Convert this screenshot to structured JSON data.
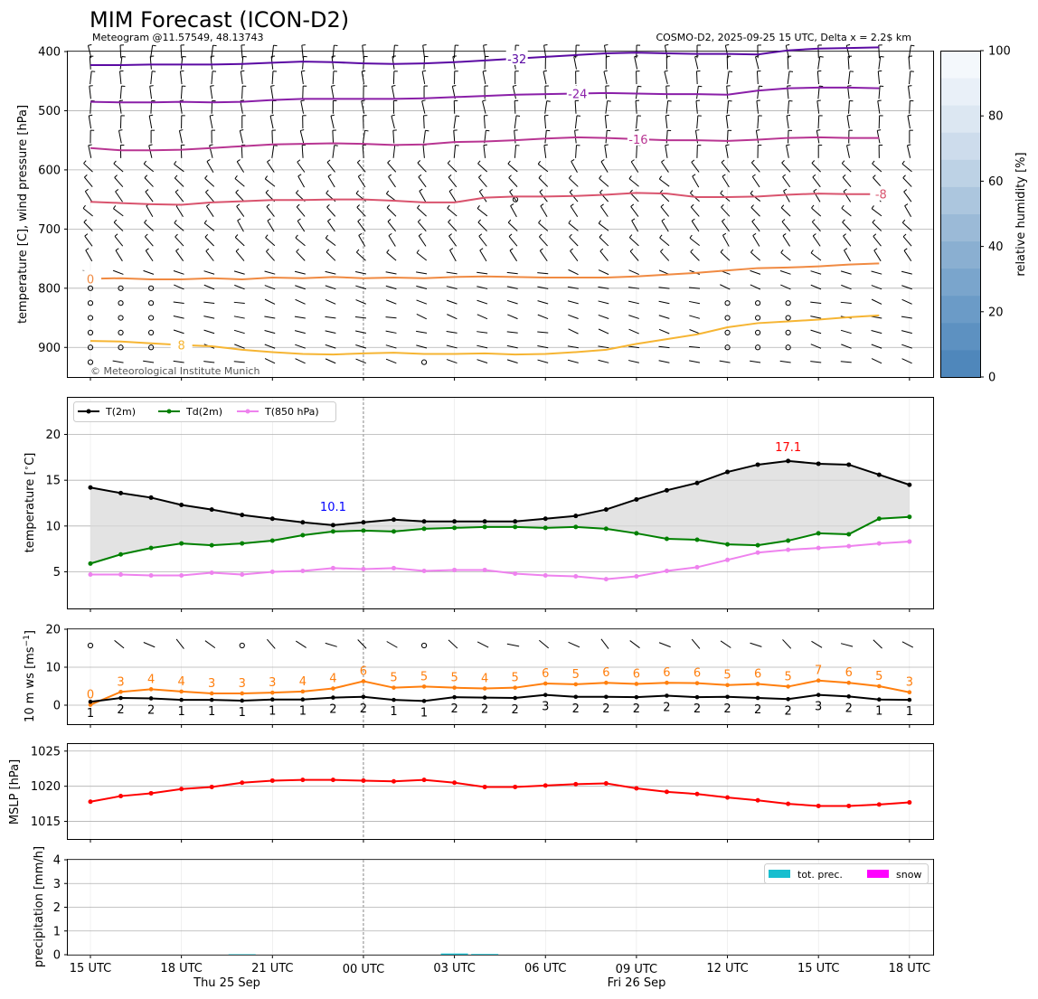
{
  "header": {
    "title": "MIM Forecast (ICON-D2)",
    "subtitle_left": "Meteogram @11.57549, 48.13743",
    "subtitle_right": "COSMO-D2, 2025-09-25 15 UTC, Delta x = 2.2$ km",
    "copyright": "© Meteorological Institute Munich"
  },
  "colors": {
    "t2m": "#000000",
    "td2m": "#008000",
    "t850": "#ee82ee",
    "wind_speed": "#ff7f0e",
    "mslp": "#ff0000",
    "tot_prec": "#17becf",
    "snow": "#ff00ff",
    "grid": "#b0b0b0",
    "shade": "#d9d9d9"
  },
  "chart_data": [
    {
      "id": "profile",
      "type": "contour",
      "ylabel": "temperature [C], wind pressure [hPa]",
      "ylim": [
        950,
        400
      ],
      "yticks": [
        400,
        500,
        600,
        700,
        800,
        900
      ],
      "contour_labels": [
        "-32",
        "-24",
        "-16",
        "-8",
        "0",
        "8"
      ],
      "contours": [
        {
          "level": -32,
          "color": "#5b0aa3",
          "y": [
            423,
            423,
            422,
            422,
            422,
            421,
            419,
            417,
            418,
            420,
            421,
            420,
            418,
            415,
            412,
            409,
            406,
            403,
            402,
            403,
            404,
            404,
            405,
            398,
            395,
            394,
            393
          ]
        },
        {
          "level": -24,
          "color": "#8a1fa8",
          "y": [
            485,
            486,
            486,
            485,
            486,
            485,
            482,
            480,
            480,
            480,
            480,
            479,
            477,
            475,
            473,
            472,
            471,
            470,
            471,
            472,
            472,
            473,
            466,
            462,
            461,
            461,
            462
          ]
        },
        {
          "level": -16,
          "color": "#b83592",
          "y": [
            563,
            567,
            567,
            566,
            563,
            560,
            557,
            556,
            555,
            556,
            558,
            557,
            553,
            552,
            550,
            547,
            545,
            546,
            548,
            550,
            550,
            551,
            549,
            546,
            545,
            546,
            546
          ]
        },
        {
          "level": -8,
          "color": "#d9546e",
          "y": [
            654,
            656,
            658,
            659,
            655,
            653,
            651,
            651,
            650,
            650,
            652,
            655,
            655,
            647,
            645,
            645,
            644,
            642,
            639,
            640,
            646,
            646,
            645,
            642,
            640,
            641,
            641
          ]
        },
        {
          "level": 0,
          "color": "#f08a42",
          "y": [
            784,
            783,
            785,
            785,
            783,
            785,
            782,
            783,
            781,
            783,
            782,
            783,
            781,
            780,
            781,
            782,
            782,
            782,
            780,
            777,
            774,
            770,
            766,
            765,
            763,
            760,
            758
          ]
        },
        {
          "level": 8,
          "color": "#f6b533",
          "y": [
            889,
            890,
            893,
            896,
            898,
            904,
            908,
            911,
            912,
            910,
            909,
            911,
            911,
            910,
            912,
            911,
            908,
            904,
            894,
            886,
            878,
            866,
            859,
            856,
            853,
            849,
            846
          ]
        }
      ],
      "humidity_colorbar": {
        "label": "relative humidity [%]",
        "range": [
          0,
          100
        ],
        "ticks": [
          0,
          20,
          40,
          60,
          80,
          100
        ]
      }
    },
    {
      "id": "temperature",
      "type": "line",
      "ylabel": "temperature [$^\\circ$C]",
      "ylim": [
        1,
        24
      ],
      "yticks": [
        5,
        10,
        15,
        20
      ],
      "legend": [
        "T(2m)",
        "Td(2m)",
        "T(850 hPa)"
      ],
      "min_label": "10.1",
      "max_label": "17.1",
      "series": [
        {
          "name": "T(2m)",
          "values": [
            14.2,
            13.6,
            13.1,
            12.3,
            11.8,
            11.2,
            10.8,
            10.4,
            10.1,
            10.4,
            10.7,
            10.5,
            10.5,
            10.5,
            10.5,
            10.8,
            11.1,
            11.8,
            12.9,
            13.9,
            14.7,
            15.9,
            16.7,
            17.1,
            16.8,
            16.7,
            15.6,
            14.5
          ]
        },
        {
          "name": "Td(2m)",
          "values": [
            5.9,
            6.9,
            7.6,
            8.1,
            7.9,
            8.1,
            8.4,
            9.0,
            9.4,
            9.5,
            9.4,
            9.7,
            9.8,
            9.9,
            9.9,
            9.8,
            9.9,
            9.7,
            9.2,
            8.6,
            8.5,
            8.0,
            7.9,
            8.4,
            9.2,
            9.1,
            10.8,
            11.0
          ]
        },
        {
          "name": "T(850 hPa)",
          "values": [
            4.7,
            4.7,
            4.6,
            4.6,
            4.9,
            4.7,
            5.0,
            5.1,
            5.4,
            5.3,
            5.4,
            5.1,
            5.2,
            5.2,
            4.8,
            4.6,
            4.5,
            4.2,
            4.5,
            5.1,
            5.5,
            6.3,
            7.1,
            7.4,
            7.6,
            7.8,
            8.1,
            8.3
          ]
        }
      ]
    },
    {
      "id": "wind10m",
      "type": "line",
      "ylabel": "10 m ws [ms$^{-1}$]",
      "ylim": [
        -5,
        20
      ],
      "yticks": [
        0,
        10,
        20
      ],
      "series": [
        {
          "name": "wind speed",
          "values": [
            0.1,
            3.5,
            4.2,
            3.6,
            3.1,
            3.1,
            3.3,
            3.6,
            4.4,
            6.3,
            4.6,
            4.9,
            4.6,
            4.4,
            4.6,
            5.7,
            5.5,
            5.9,
            5.6,
            5.9,
            5.8,
            5.3,
            5.6,
            4.9,
            6.5,
            5.9,
            5.0,
            3.4
          ],
          "labels": [
            "0",
            "3",
            "4",
            "4",
            "3",
            "3",
            "3",
            "4",
            "4",
            "6",
            "5",
            "5",
            "5",
            "4",
            "5",
            "6",
            "5",
            "6",
            "6",
            "6",
            "6",
            "5",
            "6",
            "5",
            "7",
            "6",
            "5",
            "3"
          ]
        },
        {
          "name": "gust",
          "values": [
            0.9,
            1.9,
            1.8,
            1.4,
            1.4,
            1.2,
            1.5,
            1.5,
            2.0,
            2.2,
            1.4,
            1.1,
            2.1,
            2.0,
            1.9,
            2.7,
            2.2,
            2.2,
            2.1,
            2.5,
            2.1,
            2.2,
            1.9,
            1.6,
            2.7,
            2.3,
            1.5,
            1.4
          ],
          "labels": [
            "1",
            "2",
            "2",
            "1",
            "1",
            "1",
            "1",
            "1",
            "2",
            "2",
            "1",
            "1",
            "2",
            "2",
            "2",
            "3",
            "2",
            "2",
            "2",
            "2",
            "2",
            "2",
            "2",
            "2",
            "3",
            "2",
            "1",
            "1"
          ]
        }
      ]
    },
    {
      "id": "mslp",
      "type": "line",
      "ylabel": "MSLP [hPa]",
      "ylim": [
        1012.5,
        1026
      ],
      "yticks": [
        1015,
        1020,
        1025
      ],
      "series": [
        {
          "name": "MSLP",
          "values": [
            1017.8,
            1018.6,
            1019.0,
            1019.6,
            1019.9,
            1020.5,
            1020.8,
            1020.9,
            1020.9,
            1020.8,
            1020.7,
            1020.9,
            1020.5,
            1019.9,
            1019.9,
            1020.1,
            1020.3,
            1020.4,
            1019.7,
            1019.2,
            1018.9,
            1018.4,
            1018.0,
            1017.5,
            1017.2,
            1017.2,
            1017.4,
            1017.7
          ]
        }
      ]
    },
    {
      "id": "precipitation",
      "type": "bar",
      "ylabel": "precipitation [mm/h]",
      "ylim": [
        0,
        4
      ],
      "yticks": [
        0,
        1,
        2,
        3,
        4
      ],
      "legend": [
        "tot. prec.",
        "snow"
      ],
      "series": [
        {
          "name": "tot. prec.",
          "values": [
            0,
            0,
            0,
            0,
            0,
            0.02,
            0,
            0,
            0,
            0,
            0,
            0,
            0.05,
            0.03,
            0,
            0,
            0,
            0,
            0,
            0,
            0,
            0,
            0,
            0,
            0,
            0,
            0,
            0
          ]
        }
      ]
    }
  ],
  "x_axis": {
    "tick_labels": [
      "15 UTC",
      "18 UTC",
      "21 UTC",
      "00 UTC",
      "03 UTC",
      "06 UTC",
      "09 UTC",
      "12 UTC",
      "15 UTC",
      "18 UTC"
    ],
    "day_labels": [
      "Thu 25 Sep",
      "Fri 26 Sep"
    ]
  }
}
